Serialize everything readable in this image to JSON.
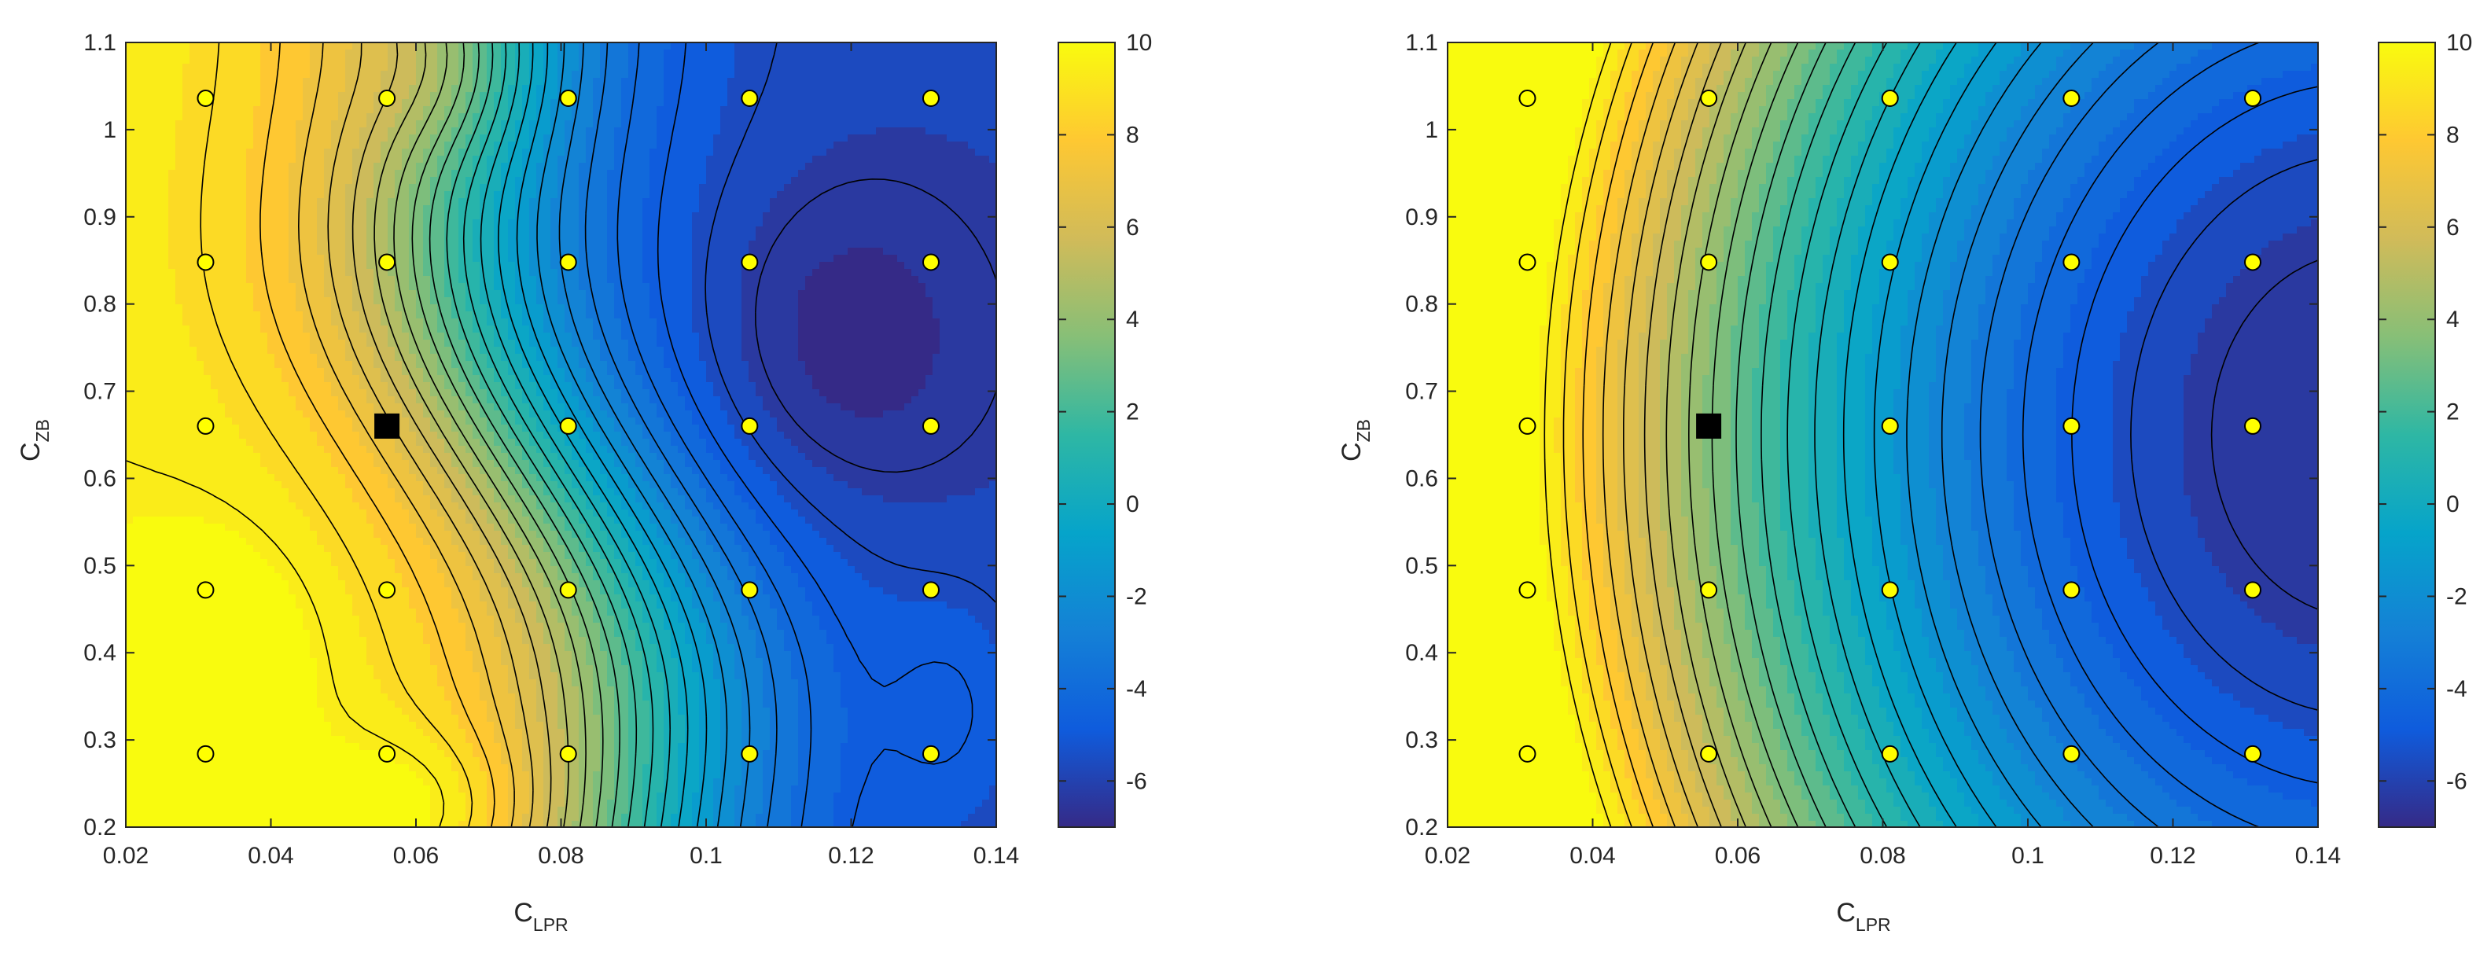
{
  "figure": {
    "panels": [
      {
        "id": "left",
        "xlabel_main": "C",
        "xlabel_sub": "LPR",
        "ylabel_main": "C",
        "ylabel_sub": "ZB",
        "colorbar_ticks": [
          "10",
          "8",
          "6",
          "4",
          "2",
          "0",
          "-2",
          "-4",
          "-6"
        ]
      },
      {
        "id": "right",
        "xlabel_main": "C",
        "xlabel_sub": "LPR",
        "ylabel_main": "C",
        "ylabel_sub": "ZB",
        "colorbar_ticks": [
          "10",
          "8",
          "6",
          "4",
          "2",
          "0",
          "-2",
          "-4",
          "-6"
        ]
      }
    ]
  },
  "chart_data": [
    {
      "type": "heatmap",
      "subtype": "filled contour with isolines",
      "xlabel": "C_LPR",
      "ylabel": "C_ZB",
      "xlim": [
        0.02,
        0.14
      ],
      "ylim": [
        0.2,
        1.1
      ],
      "xticks": [
        "0.02",
        "0.04",
        "0.06",
        "0.08",
        "0.1",
        "0.12",
        "0.14"
      ],
      "yticks": [
        "0.2",
        "0.3",
        "0.4",
        "0.5",
        "0.6",
        "0.7",
        "0.8",
        "0.9",
        "1",
        "1.1"
      ],
      "zlim": [
        -7,
        10
      ],
      "colorbar_ticks": [
        -6,
        -4,
        -2,
        0,
        2,
        4,
        6,
        8,
        10
      ],
      "colormap": "parula",
      "sample_points": {
        "marker": "circle",
        "color": "#ffff00",
        "x": [
          0.031,
          0.056,
          0.081,
          0.106,
          0.131
        ],
        "y": [
          0.284,
          0.472,
          0.66,
          0.848,
          1.036
        ]
      },
      "highlight_point": {
        "marker": "square",
        "color": "#000000",
        "x": 0.056,
        "y": 0.66
      }
    },
    {
      "type": "heatmap",
      "subtype": "filled contour with isolines",
      "xlabel": "C_LPR",
      "ylabel": "C_ZB",
      "xlim": [
        0.02,
        0.14
      ],
      "ylim": [
        0.2,
        1.1
      ],
      "xticks": [
        "0.02",
        "0.04",
        "0.06",
        "0.08",
        "0.1",
        "0.12",
        "0.14"
      ],
      "yticks": [
        "0.2",
        "0.3",
        "0.4",
        "0.5",
        "0.6",
        "0.7",
        "0.8",
        "0.9",
        "1",
        "1.1"
      ],
      "zlim": [
        -7,
        10
      ],
      "colorbar_ticks": [
        -6,
        -4,
        -2,
        0,
        2,
        4,
        6,
        8,
        10
      ],
      "colormap": "parula",
      "sample_points": {
        "marker": "circle",
        "color": "#ffff00",
        "x": [
          0.031,
          0.056,
          0.081,
          0.106,
          0.131
        ],
        "y": [
          0.284,
          0.472,
          0.66,
          0.848,
          1.036
        ]
      },
      "highlight_point": {
        "marker": "square",
        "color": "#000000",
        "x": 0.056,
        "y": 0.66
      }
    }
  ]
}
